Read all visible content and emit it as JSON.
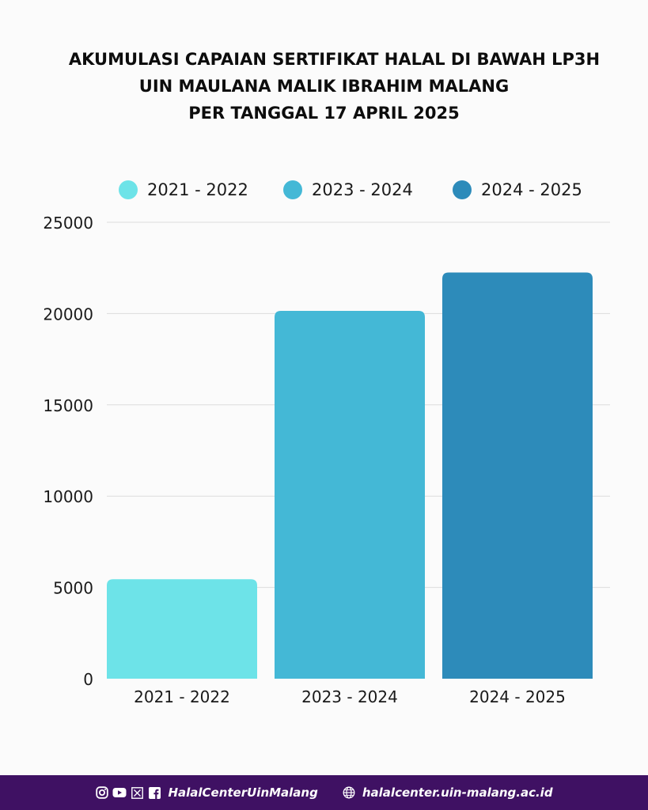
{
  "title_lines": [
    "AKUMULASI CAPAIAN SERTIFIKAT HALAL DI BAWAH LP3H",
    "UIN MAULANA MALIK IBRAHIM MALANG",
    "PER TANGGAL 17 APRIL 2025"
  ],
  "legend": [
    {
      "label": "2021 - 2022",
      "color": "#6de3e8"
    },
    {
      "label": "2023 - 2024",
      "color": "#44b8d6"
    },
    {
      "label": "2024 - 2025",
      "color": "#2d8bba"
    }
  ],
  "chart_data": {
    "type": "bar",
    "title": "AKUMULASI CAPAIAN SERTIFIKAT HALAL DI BAWAH LP3H UIN MAULANA MALIK IBRAHIM MALANG PER TANGGAL 17 APRIL 2025",
    "categories": [
      "2021 - 2022",
      "2023 - 2024",
      "2024 - 2025"
    ],
    "values": [
      5450,
      20150,
      22250
    ],
    "colors": [
      "#6de3e8",
      "#44b8d6",
      "#2d8bba"
    ],
    "ylim": [
      0,
      25000
    ],
    "yticks": [
      "0",
      "5000",
      "10000",
      "15000",
      "20000",
      "25000"
    ],
    "grid": true,
    "legend_position": "top",
    "xlabel": "",
    "ylabel": ""
  },
  "footer": {
    "social_icons": [
      "instagram-icon",
      "youtube-icon",
      "x-icon",
      "facebook-icon"
    ],
    "handle": "HalalCenterUinMalang",
    "website_icon": "globe-icon",
    "website": "halalcenter.uin-malang.ac.id",
    "background": "#3f1163"
  }
}
